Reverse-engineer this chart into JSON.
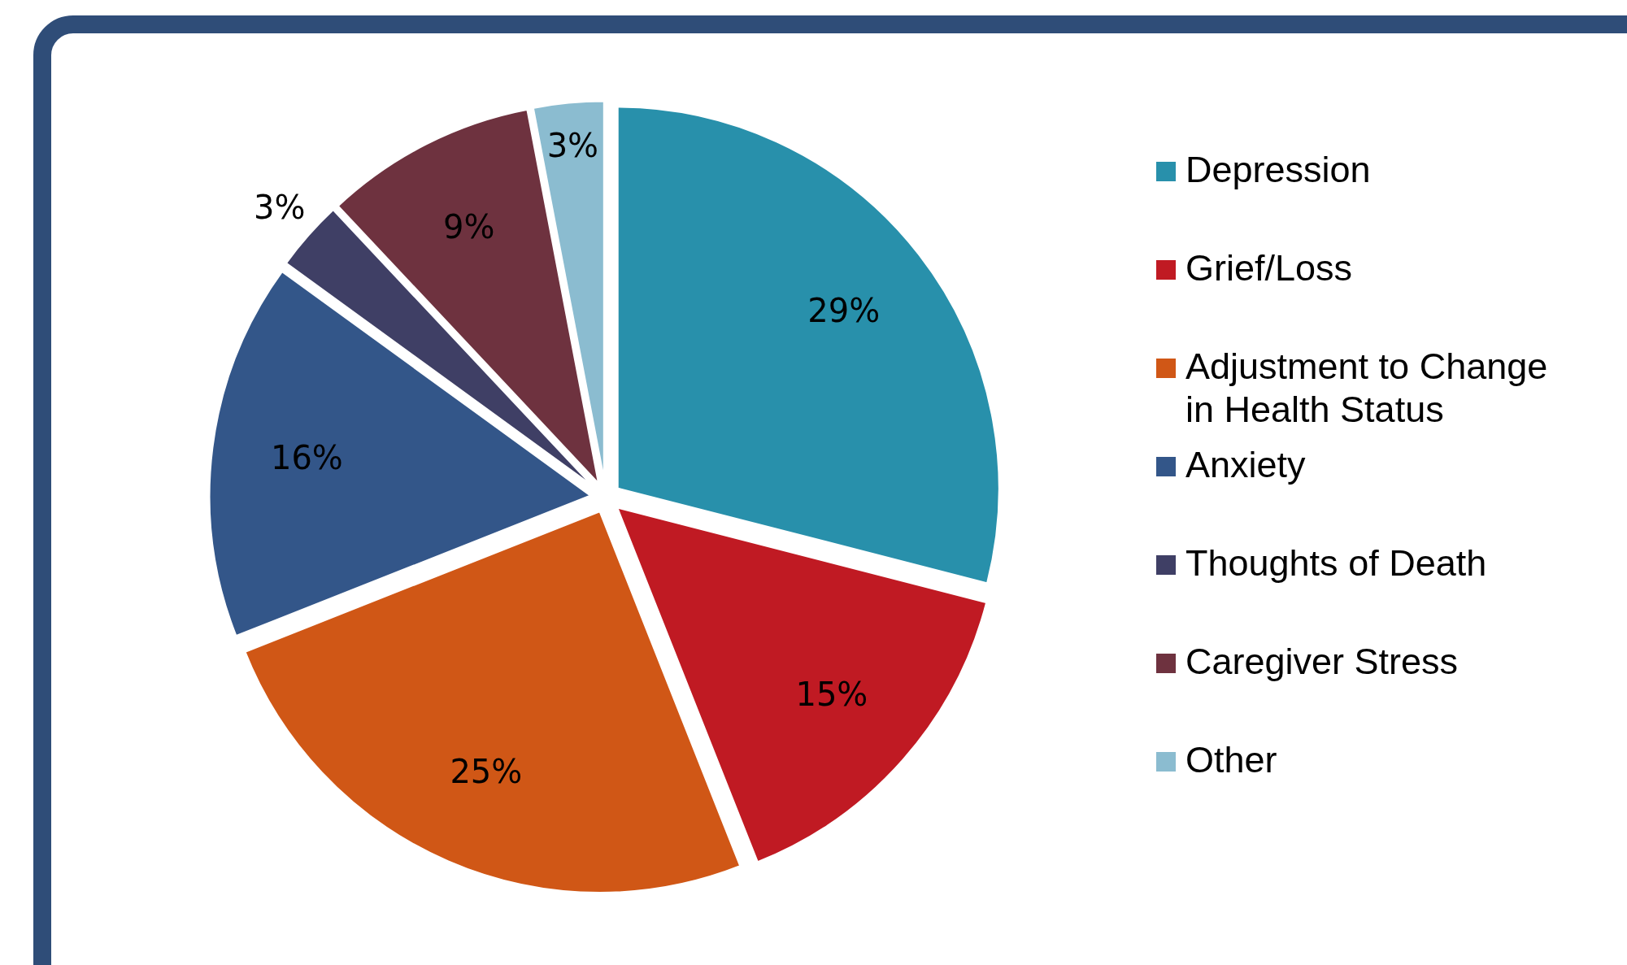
{
  "chart_data": {
    "type": "pie",
    "categories": [
      "Depression",
      "Grief/Loss",
      "Adjustment to Change in Health Status",
      "Anxiety",
      "Thoughts of Death",
      "Caregiver Stress",
      "Other"
    ],
    "values": [
      29,
      15,
      25,
      16,
      3,
      9,
      3
    ],
    "colors": [
      "#2890ab",
      "#c01a23",
      "#d05716",
      "#335689",
      "#3f3f65",
      "#6e323f",
      "#8bbcd0"
    ],
    "value_labels": [
      "29%",
      "15%",
      "25%",
      "16%",
      "3%",
      "9%",
      "3%"
    ],
    "legend": "right"
  }
}
